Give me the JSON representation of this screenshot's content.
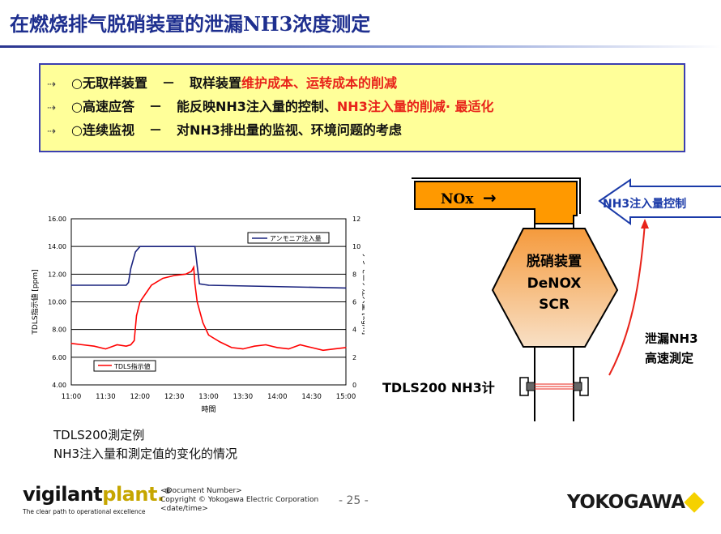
{
  "title": "在燃烧排气脱硝装置的泄漏NH3浓度测定",
  "bullets": [
    {
      "arrow": "⇢",
      "head": "○无取样装置",
      "dash": "－",
      "text": "取样装置",
      "highlight": "维护成本、运转成本的削减"
    },
    {
      "arrow": "⇢",
      "head": "○高速应答",
      "dash": "－",
      "text": "能反映NH3注入量的控制、",
      "highlight": "NH3注入量的削减· 最适化"
    },
    {
      "arrow": "⇢",
      "head": "○连续监视",
      "dash": "－",
      "text": "对NH3排出量的监视、环境问题的考虑",
      "highlight": ""
    }
  ],
  "chart_data": {
    "type": "line",
    "x_ticks": [
      "11:00",
      "11:30",
      "12:00",
      "12:30",
      "13:00",
      "13:30",
      "14:00",
      "14:30",
      "15:00"
    ],
    "xlabel": "時間",
    "y_left_ticks": [
      "4.00",
      "6.00",
      "8.00",
      "10.00",
      "12.00",
      "14.00",
      "16.00"
    ],
    "y_left_range": [
      4,
      16
    ],
    "y_right_ticks": [
      "0",
      "2",
      "4",
      "6",
      "8",
      "10",
      "12"
    ],
    "y_right_range": [
      0,
      12
    ],
    "ylabel_left": "TDLS指示値 [ppm]",
    "ylabel_right": "アンモニア注入量 [kg/h]",
    "grid": true,
    "series": [
      {
        "name": "TDLS指示値",
        "axis": "left",
        "color": "#ff0000",
        "x": [
          0,
          10,
          20,
          30,
          40,
          48,
          52,
          55,
          57,
          60,
          70,
          80,
          90,
          100,
          105,
          107,
          108,
          110,
          115,
          120,
          130,
          140,
          150,
          160,
          170,
          180,
          190,
          200,
          210,
          220,
          230,
          240
        ],
        "y": [
          7.0,
          6.9,
          6.8,
          6.6,
          6.9,
          6.8,
          6.9,
          7.2,
          9.0,
          10.0,
          11.2,
          11.7,
          11.9,
          12.0,
          12.2,
          12.5,
          11.3,
          10.0,
          8.5,
          7.6,
          7.1,
          6.7,
          6.6,
          6.8,
          6.9,
          6.7,
          6.6,
          6.9,
          6.7,
          6.5,
          6.6,
          6.7
        ]
      },
      {
        "name": "アンモニア注入量",
        "axis": "right",
        "color": "#1a237e",
        "x": [
          0,
          48,
          50,
          52,
          56,
          60,
          108,
          110,
          112,
          120,
          240
        ],
        "y": [
          7.2,
          7.2,
          7.4,
          8.4,
          9.6,
          10.0,
          10.0,
          8.6,
          7.3,
          7.2,
          7.0
        ]
      }
    ],
    "legend": [
      "アンモニア注入量",
      "TDLS指示値"
    ]
  },
  "captions": [
    "TDLS200測定例",
    "NH3注入量和測定值的变化的情况"
  ],
  "diagram": {
    "nox_label": "NOx",
    "nox_arrow": "→",
    "control_label": "NH3注入量控制",
    "denox_lines": [
      "脱硝装置",
      "DeNOX",
      "SCR"
    ],
    "leak_label_lines": [
      "泄漏NH3",
      "高速測定"
    ],
    "tdls_label": "TDLS200 NH3计",
    "colors": {
      "duct": "#ff9900",
      "reactor_top": "#f6b77a",
      "reactor_bottom": "#f6d6b4",
      "control_border": "#1a3aa8",
      "control_text": "#1a3aa8",
      "leak_arrow": "#e8231a",
      "beam": "#e8231a"
    }
  },
  "footer": {
    "brand_a": "vigilant",
    "brand_b": "plant.",
    "brand_mark": "®",
    "tagline": "The clear path to operational excellence",
    "doc_lines": [
      "<Document Number>",
      "Copyright © Yokogawa Electric Corporation",
      "<date/time>"
    ],
    "page": "- 25 -",
    "company": "YOKOGAWA"
  },
  "colors": {
    "title": "#1e2f8f",
    "bullet_box_bg": "#ffff99",
    "bullet_box_border": "#3b3fb0",
    "highlight": "#e8231a",
    "brand_yellow": "#f5d100"
  }
}
